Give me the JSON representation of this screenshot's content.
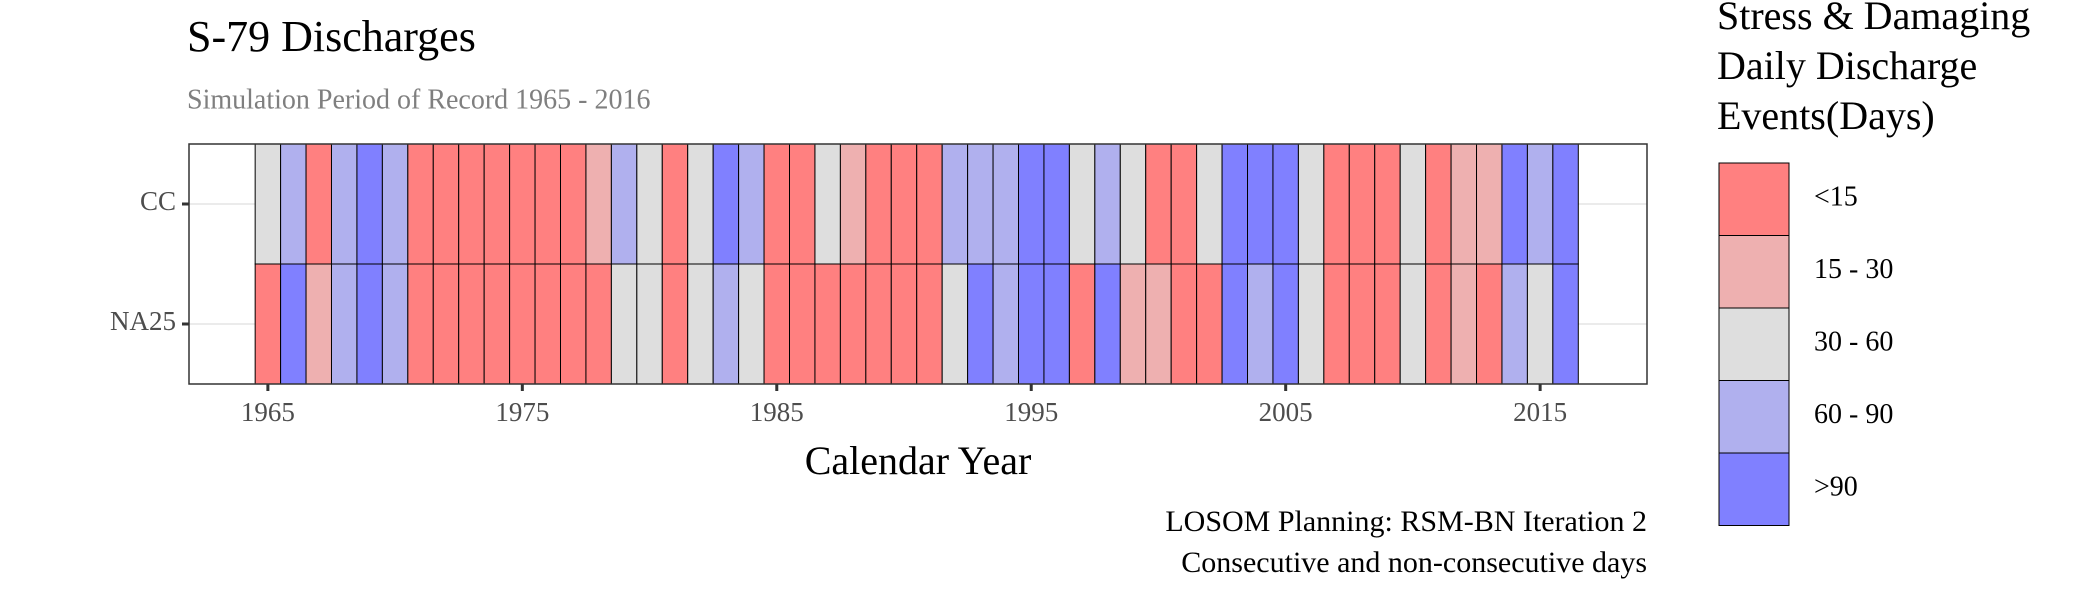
{
  "chart_data": {
    "type": "heatmap",
    "title": "S-79 Discharges",
    "subtitle": "Simulation Period of Record 1965 - 2016",
    "x_label": "Calendar Year",
    "caption": [
      "LOSOM Planning: RSM-BN Iteration 2",
      "Consecutive and non-consecutive days"
    ],
    "x": [
      1965,
      1966,
      1967,
      1968,
      1969,
      1970,
      1971,
      1972,
      1973,
      1974,
      1975,
      1976,
      1977,
      1978,
      1979,
      1980,
      1981,
      1982,
      1983,
      1984,
      1985,
      1986,
      1987,
      1988,
      1989,
      1990,
      1991,
      1992,
      1993,
      1994,
      1995,
      1996,
      1997,
      1998,
      1999,
      2000,
      2001,
      2002,
      2003,
      2004,
      2005,
      2006,
      2007,
      2008,
      2009,
      2010,
      2011,
      2012,
      2013,
      2014,
      2015,
      2016
    ],
    "series": [
      {
        "name": "NA25",
        "values": [
          "<15",
          ">90",
          "15 - 30",
          "60 - 90",
          ">90",
          "60 - 90",
          "<15",
          "<15",
          "<15",
          "<15",
          "<15",
          "<15",
          "<15",
          "<15",
          "30 - 60",
          "30 - 60",
          "<15",
          "30 - 60",
          "60 - 90",
          "30 - 60",
          "<15",
          "<15",
          "<15",
          "<15",
          "<15",
          "<15",
          "<15",
          "30 - 60",
          ">90",
          "60 - 90",
          ">90",
          ">90",
          "<15",
          ">90",
          "15 - 30",
          "15 - 30",
          "<15",
          "<15",
          ">90",
          "60 - 90",
          ">90",
          "30 - 60",
          "<15",
          "<15",
          "<15",
          "30 - 60",
          "<15",
          "15 - 30",
          "<15",
          "60 - 90",
          "30 - 60",
          ">90"
        ]
      },
      {
        "name": "CC",
        "values": [
          "30 - 60",
          "60 - 90",
          "<15",
          "60 - 90",
          ">90",
          "60 - 90",
          "<15",
          "<15",
          "<15",
          "<15",
          "<15",
          "<15",
          "<15",
          "15 - 30",
          "60 - 90",
          "30 - 60",
          "<15",
          "30 - 60",
          ">90",
          "60 - 90",
          "<15",
          "<15",
          "30 - 60",
          "15 - 30",
          "<15",
          "<15",
          "<15",
          "60 - 90",
          "60 - 90",
          "60 - 90",
          ">90",
          ">90",
          "30 - 60",
          "60 - 90",
          "30 - 60",
          "<15",
          "<15",
          "30 - 60",
          ">90",
          ">90",
          ">90",
          "30 - 60",
          "<15",
          "<15",
          "<15",
          "30 - 60",
          "<15",
          "15 - 30",
          "15 - 30",
          ">90",
          "60 - 90",
          ">90"
        ]
      }
    ],
    "xlim": [
      1961.9,
      2019.2
    ],
    "xticks": [
      1965,
      1975,
      1985,
      1995,
      2005,
      2015
    ],
    "grid": true,
    "legend": {
      "title": [
        "Stress & Damaging",
        "Daily Discharge",
        "Events(Days)"
      ],
      "items": [
        {
          "label": "<15",
          "color": "#FF8080"
        },
        {
          "label": "15 - 30",
          "color": "#EEB0B0"
        },
        {
          "label": "30 - 60",
          "color": "#DEDEDE"
        },
        {
          "label": "60 - 90",
          "color": "#B0B0EE"
        },
        {
          "label": ">90",
          "color": "#8080FF"
        }
      ]
    }
  }
}
